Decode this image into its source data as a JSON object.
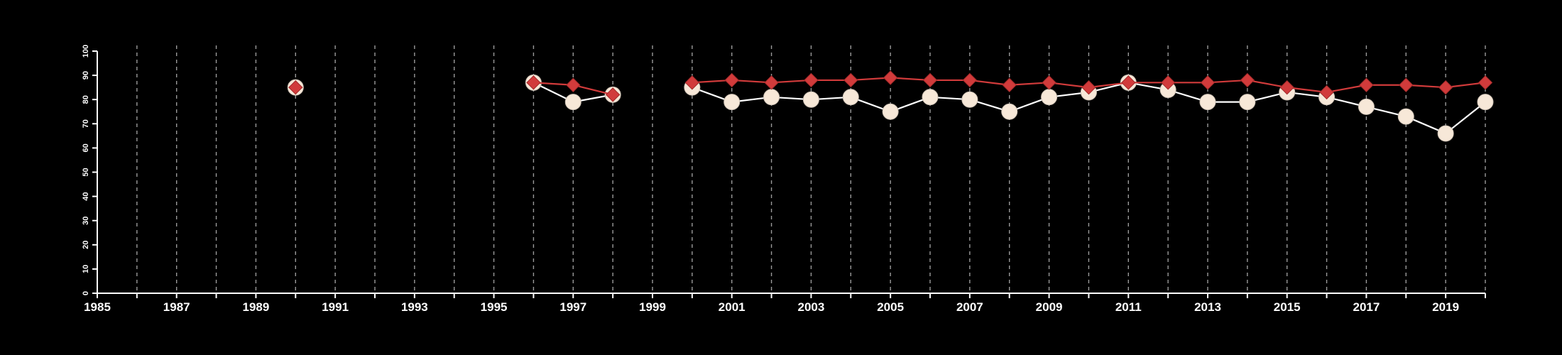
{
  "chart_data": {
    "type": "line",
    "title": "",
    "xlabel": "",
    "ylabel": "",
    "xlim": [
      1985,
      2020
    ],
    "ylim": [
      0,
      100
    ],
    "x_ticks": [
      1985,
      1987,
      1989,
      1991,
      1993,
      1995,
      1997,
      1999,
      2001,
      2003,
      2005,
      2007,
      2009,
      2011,
      2013,
      2015,
      2017,
      2019
    ],
    "y_ticks": [
      0,
      10,
      20,
      30,
      40,
      50,
      60,
      70,
      80,
      90,
      100
    ],
    "vertical_grid": "dashed, one per year from 1986 to 2020",
    "background_color": "#000000",
    "axis_color": "#ffffff",
    "series": [
      {
        "marker": "circle",
        "color": "#f7e8d8",
        "line_color": "#ffffff",
        "points": [
          {
            "x": 1990,
            "y": 85
          },
          {
            "x": 1996,
            "y": 87
          },
          {
            "x": 1997,
            "y": 79
          },
          {
            "x": 1998,
            "y": 82
          },
          {
            "x": 2000,
            "y": 85
          },
          {
            "x": 2001,
            "y": 79
          },
          {
            "x": 2002,
            "y": 81
          },
          {
            "x": 2003,
            "y": 80
          },
          {
            "x": 2004,
            "y": 81
          },
          {
            "x": 2005,
            "y": 75
          },
          {
            "x": 2006,
            "y": 81
          },
          {
            "x": 2007,
            "y": 80
          },
          {
            "x": 2008,
            "y": 75
          },
          {
            "x": 2009,
            "y": 81
          },
          {
            "x": 2010,
            "y": 83
          },
          {
            "x": 2011,
            "y": 87
          },
          {
            "x": 2012,
            "y": 84
          },
          {
            "x": 2013,
            "y": 79
          },
          {
            "x": 2014,
            "y": 79
          },
          {
            "x": 2015,
            "y": 83
          },
          {
            "x": 2016,
            "y": 81
          },
          {
            "x": 2017,
            "y": 77
          },
          {
            "x": 2018,
            "y": 73
          },
          {
            "x": 2019,
            "y": 66
          },
          {
            "x": 2020,
            "y": 79
          }
        ]
      },
      {
        "marker": "diamond",
        "color": "#d13b3b",
        "line_color": "#d13b3b",
        "points": [
          {
            "x": 1990,
            "y": 85
          },
          {
            "x": 1996,
            "y": 87
          },
          {
            "x": 1997,
            "y": 86
          },
          {
            "x": 1998,
            "y": 82
          },
          {
            "x": 2000,
            "y": 87
          },
          {
            "x": 2001,
            "y": 88
          },
          {
            "x": 2002,
            "y": 87
          },
          {
            "x": 2003,
            "y": 88
          },
          {
            "x": 2004,
            "y": 88
          },
          {
            "x": 2005,
            "y": 89
          },
          {
            "x": 2006,
            "y": 88
          },
          {
            "x": 2007,
            "y": 88
          },
          {
            "x": 2008,
            "y": 86
          },
          {
            "x": 2009,
            "y": 87
          },
          {
            "x": 2010,
            "y": 85
          },
          {
            "x": 2011,
            "y": 87
          },
          {
            "x": 2012,
            "y": 87
          },
          {
            "x": 2013,
            "y": 87
          },
          {
            "x": 2014,
            "y": 88
          },
          {
            "x": 2015,
            "y": 85
          },
          {
            "x": 2016,
            "y": 83
          },
          {
            "x": 2017,
            "y": 86
          },
          {
            "x": 2018,
            "y": 86
          },
          {
            "x": 2019,
            "y": 85
          },
          {
            "x": 2020,
            "y": 87
          }
        ]
      }
    ]
  }
}
